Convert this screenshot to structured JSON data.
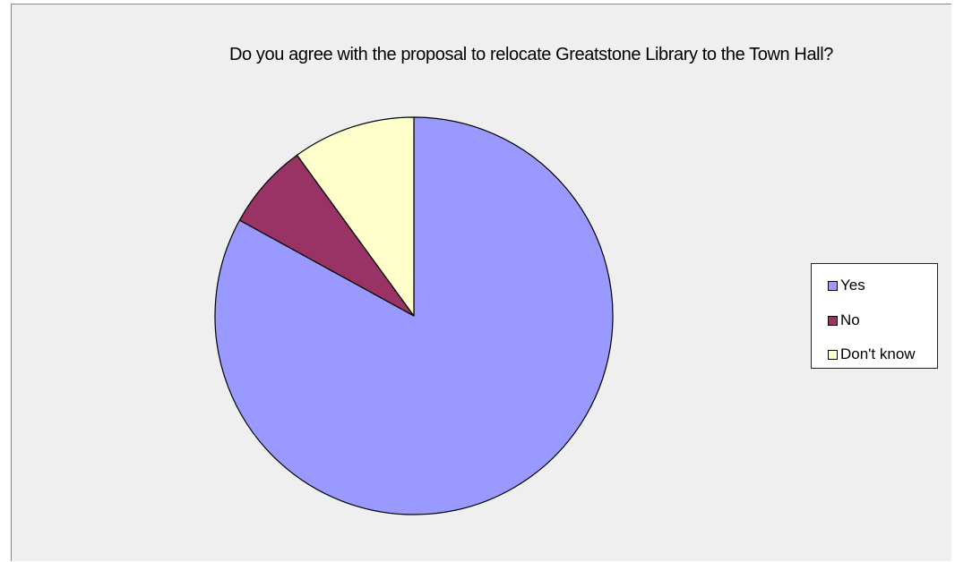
{
  "chart_data": {
    "type": "pie",
    "title": "Do you agree with the proposal to relocate Greatstone Library to the Town Hall?",
    "categories": [
      "Yes",
      "No",
      "Don't know"
    ],
    "values": [
      83,
      7,
      10
    ],
    "colors": [
      "#9999ff",
      "#993366",
      "#ffffcc"
    ],
    "legend_position": "right"
  }
}
